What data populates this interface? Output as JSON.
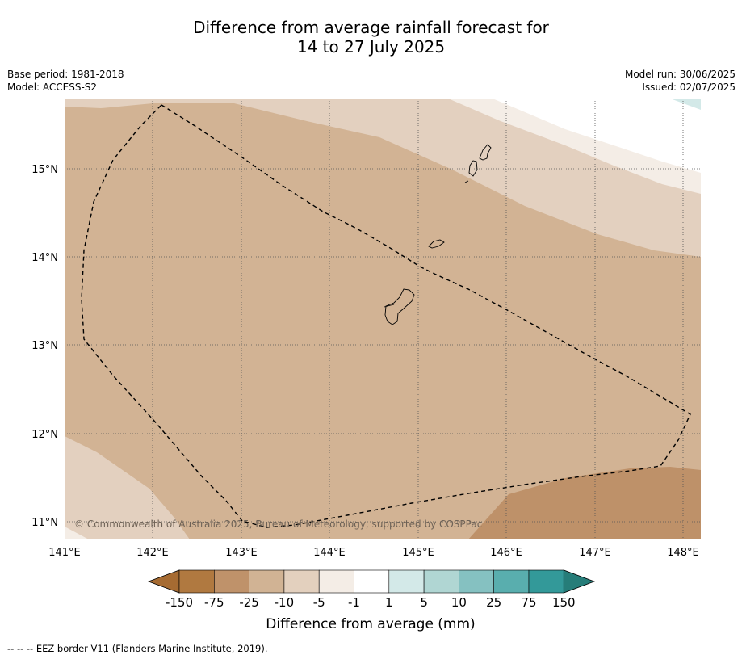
{
  "title": {
    "line1": "Difference from average rainfall forecast for",
    "line2": "14 to 27 July 2025"
  },
  "meta_left": {
    "base_period": "Base period: 1981-2018",
    "model": "Model: ACCESS-S2"
  },
  "meta_right": {
    "model_run": "Model run: 30/06/2025",
    "issued": "Issued: 02/07/2025"
  },
  "map": {
    "lon_ticks": [
      "141°E",
      "142°E",
      "143°E",
      "144°E",
      "145°E",
      "146°E",
      "147°E",
      "148°E"
    ],
    "lat_ticks": [
      "15°N",
      "14°N",
      "13°N",
      "12°N",
      "11°N"
    ],
    "copyright": "© Commonwealth of Australia 2025, Bureau of Meteorology, supported by COSPPac",
    "colors": {
      "c_n10": "#d2b394",
      "c_n5": "#e3d0bf",
      "c_n1": "#f4ede6",
      "c_n25": "#be9169",
      "c_p1": "#d3e9e8"
    }
  },
  "colorbar": {
    "colors": [
      "#a66b32",
      "#b07940",
      "#bf926a",
      "#d1b394",
      "#e3d0be",
      "#f4ede6",
      "#ffffff",
      "#d3e9e8",
      "#b0d6d3",
      "#85c1c1",
      "#59aeae",
      "#339999",
      "#267d79"
    ],
    "tick_labels": [
      "-150",
      "-75",
      "-25",
      "-10",
      "-5",
      "-1",
      "1",
      "5",
      "10",
      "25",
      "75",
      "150"
    ],
    "label": "Difference from average (mm)"
  },
  "footnote": "--  --  -- EEZ border V11 (Flanders Marine Institute, 2019)."
}
